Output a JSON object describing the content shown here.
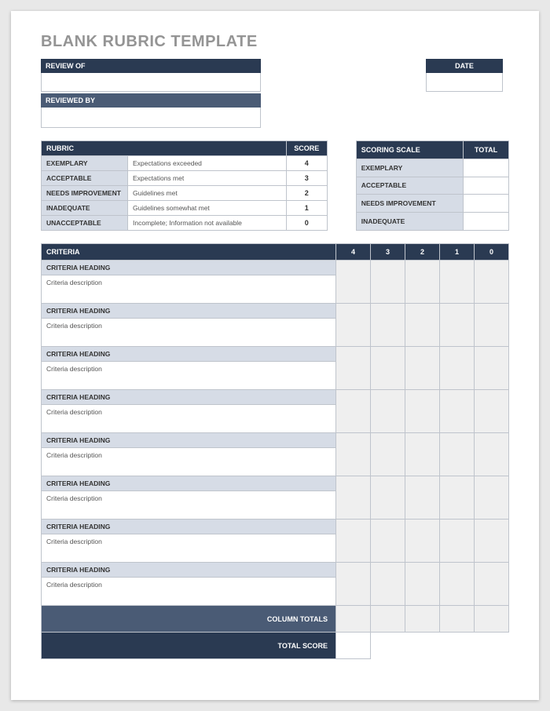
{
  "title": "BLANK RUBRIC TEMPLATE",
  "colors": {
    "header_dark": "#2a3a52",
    "header_mid": "#4a5b75",
    "band_light": "#d6dce6",
    "cell_grey": "#efefef",
    "border": "#bfc4cc",
    "title_grey": "#949494",
    "page_bg": "#ffffff"
  },
  "fields": {
    "review_of_label": "REVIEW OF",
    "review_of_value": "",
    "date_label": "DATE",
    "date_value": "",
    "reviewed_by_label": "REVIEWED BY",
    "reviewed_by_value": ""
  },
  "rubric": {
    "header_label": "RUBRIC",
    "score_label": "SCORE",
    "rows": [
      {
        "level": "EXEMPLARY",
        "desc": "Expectations exceeded",
        "score": "4"
      },
      {
        "level": "ACCEPTABLE",
        "desc": "Expectations met",
        "score": "3"
      },
      {
        "level": "NEEDS IMPROVEMENT",
        "desc": "Guidelines met",
        "score": "2"
      },
      {
        "level": "INADEQUATE",
        "desc": "Guidelines somewhat met",
        "score": "1"
      },
      {
        "level": "UNACCEPTABLE",
        "desc": "Incomplete; Information not available",
        "score": "0"
      }
    ]
  },
  "scoring_scale": {
    "header_label": "SCORING SCALE",
    "total_label": "TOTAL",
    "rows": [
      {
        "level": "EXEMPLARY",
        "total": ""
      },
      {
        "level": "ACCEPTABLE",
        "total": ""
      },
      {
        "level": "NEEDS IMPROVEMENT",
        "total": ""
      },
      {
        "level": "INADEQUATE",
        "total": ""
      }
    ]
  },
  "criteria": {
    "header_label": "CRITERIA",
    "score_columns": [
      "4",
      "3",
      "2",
      "1",
      "0"
    ],
    "rows": [
      {
        "heading": "CRITERIA HEADING",
        "desc": "Criteria description"
      },
      {
        "heading": "CRITERIA HEADING",
        "desc": "Criteria description"
      },
      {
        "heading": "CRITERIA HEADING",
        "desc": "Criteria description"
      },
      {
        "heading": "CRITERIA HEADING",
        "desc": "Criteria description"
      },
      {
        "heading": "CRITERIA HEADING",
        "desc": "Criteria description"
      },
      {
        "heading": "CRITERIA HEADING",
        "desc": "Criteria description"
      },
      {
        "heading": "CRITERIA HEADING",
        "desc": "Criteria description"
      },
      {
        "heading": "CRITERIA HEADING",
        "desc": "Criteria description"
      }
    ],
    "column_totals_label": "COLUMN TOTALS",
    "total_score_label": "TOTAL SCORE",
    "column_totals": [
      "",
      "",
      "",
      "",
      ""
    ],
    "total_score": ""
  }
}
